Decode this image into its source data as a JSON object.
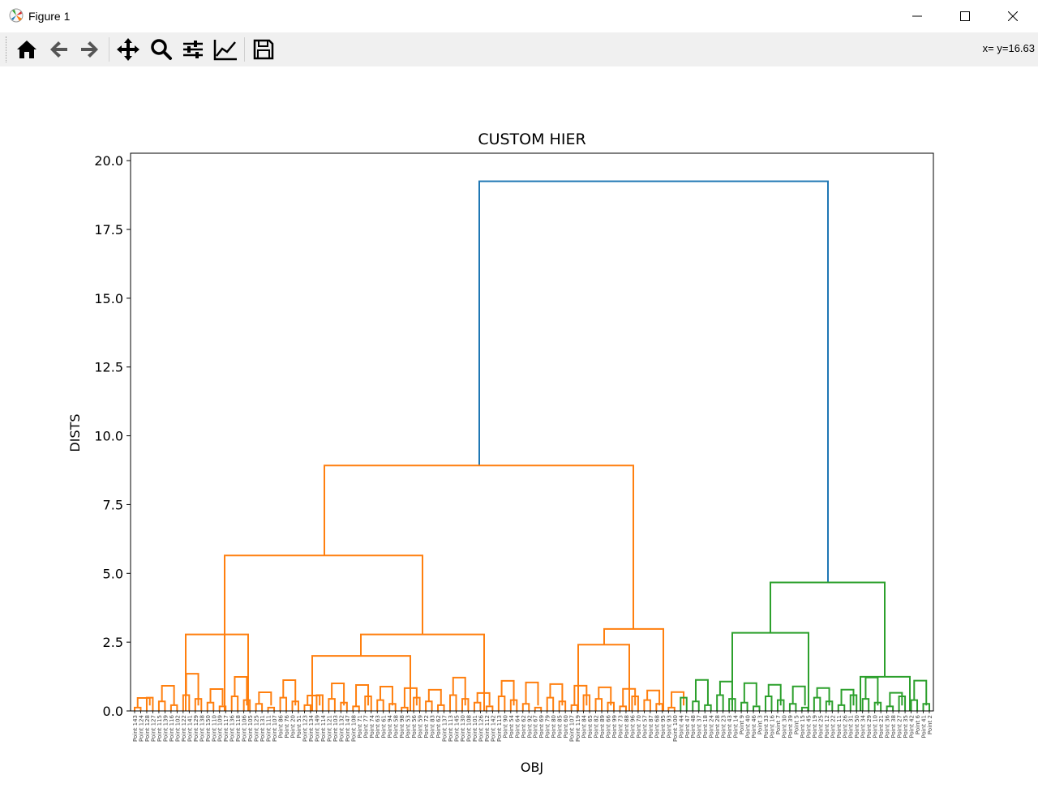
{
  "window": {
    "title": "Figure 1",
    "minimize_icon": "minimize-icon",
    "maximize_icon": "maximize-icon",
    "close_icon": "close-icon"
  },
  "toolbar": {
    "buttons": [
      {
        "name": "home",
        "icon": "home-icon"
      },
      {
        "name": "back",
        "icon": "arrow-left-icon"
      },
      {
        "name": "forward",
        "icon": "arrow-right-icon"
      },
      {
        "name": "pan",
        "icon": "move-icon"
      },
      {
        "name": "zoom",
        "icon": "magnifier-icon"
      },
      {
        "name": "configure-subplots",
        "icon": "sliders-icon"
      },
      {
        "name": "edit-axis",
        "icon": "line-chart-icon"
      },
      {
        "name": "save",
        "icon": "floppy-disk-icon"
      }
    ],
    "coords": "x= y=16.63"
  },
  "chart_data": {
    "type": "dendrogram",
    "title": "CUSTOM HIER",
    "xlabel": "OBJ",
    "ylabel": "DISTS",
    "ylim": [
      0,
      20.3
    ],
    "yticks": [
      "0.0",
      "2.5",
      "5.0",
      "7.5",
      "10.0",
      "12.5",
      "15.0",
      "17.5",
      "20.0"
    ],
    "leaves": [
      "Point 143",
      "Point 124",
      "Point 128",
      "Point 127",
      "Point 115",
      "Point 139",
      "Point 116",
      "Point 102",
      "Point 122",
      "Point 141",
      "Point 129",
      "Point 138",
      "Point 150",
      "Point 110",
      "Point 109",
      "Point 117",
      "Point 136",
      "Point 118",
      "Point 106",
      "Point 105",
      "Point 125",
      "Point 131",
      "Point 111",
      "Point 107",
      "Point 86",
      "Point 76",
      "Point 20",
      "Point 51",
      "Point 123",
      "Point 134",
      "Point 149",
      "Point 114",
      "Point 121",
      "Point 103",
      "Point 132",
      "Point 147",
      "Point 108",
      "Point 71",
      "Point 77",
      "Point 74",
      "Point 63",
      "Point 61",
      "Point 94",
      "Point 58",
      "Point 98",
      "Point 53",
      "Point 56",
      "Point 59",
      "Point 72",
      "Point 83",
      "Point 62",
      "Point 137",
      "Point 113",
      "Point 145",
      "Point 130",
      "Point 108",
      "Point 101",
      "Point 126",
      "Point 112",
      "Point 142",
      "Point 113",
      "Point 90",
      "Point 54",
      "Point 64",
      "Point 62",
      "Point 92",
      "Point 67",
      "Point 69",
      "Point 79",
      "Point 80",
      "Point 85",
      "Point 60",
      "Point 107",
      "Point 119",
      "Point 84",
      "Point 65",
      "Point 82",
      "Point 89",
      "Point 66",
      "Point 99",
      "Point 73",
      "Point 88",
      "Point 96",
      "Point 70",
      "Point 57",
      "Point 87",
      "Point 68",
      "Point 95",
      "Point 93",
      "Point 100",
      "Point 44",
      "Point 47",
      "Point 48",
      "Point 37",
      "Point 18",
      "Point 24",
      "Point 28",
      "Point 23",
      "Point 43",
      "Point 14",
      "Point 9",
      "Point 40",
      "Point 46",
      "Point 3",
      "Point 33",
      "Point 16",
      "Point 7",
      "Point 30",
      "Point 39",
      "Point 5",
      "Point 15",
      "Point 45",
      "Point 19",
      "Point 25",
      "Point 12",
      "Point 22",
      "Point 11",
      "Point 26",
      "Point 31",
      "Point 50",
      "Point 34",
      "Point 29",
      "Point 10",
      "Point 21",
      "Point 36",
      "Point 38",
      "Point 27",
      "Point 35",
      "Point 42",
      "Point 6",
      "Point 41",
      "Point 2"
    ],
    "merges": [
      {
        "x1": 591,
        "x2": 1021,
        "height": 19.25,
        "color": "#1f77b4"
      },
      {
        "x1": 400,
        "x2": 781,
        "height": 8.92,
        "color": "#ff7f0e"
      },
      {
        "x1": 950,
        "x2": 1091,
        "height": 4.67,
        "color": "#2ca02c"
      },
      {
        "x1": 277,
        "x2": 521,
        "height": 5.65,
        "color": "#ff7f0e"
      },
      {
        "x1": 745,
        "x2": 818,
        "height": 2.98,
        "color": "#ff7f0e"
      },
      {
        "x1": 229,
        "x2": 306,
        "height": 2.78,
        "color": "#ff7f0e"
      },
      {
        "x1": 445,
        "x2": 597,
        "height": 2.78,
        "color": "#ff7f0e"
      },
      {
        "x1": 903,
        "x2": 997,
        "height": 2.84,
        "color": "#2ca02c"
      },
      {
        "x1": 1061,
        "x2": 1122,
        "height": 1.24,
        "color": "#2ca02c"
      },
      {
        "x1": 385,
        "x2": 506,
        "height": 2.0,
        "color": "#ff7f0e"
      },
      {
        "x1": 713,
        "x2": 776,
        "height": 2.41,
        "color": "#ff7f0e"
      }
    ]
  }
}
